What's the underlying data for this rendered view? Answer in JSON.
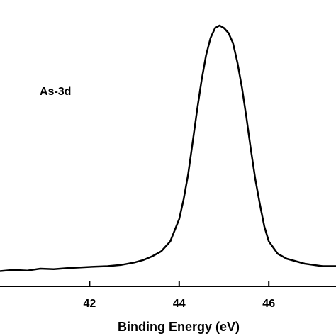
{
  "chart_data": {
    "type": "line",
    "title": "",
    "xlabel": "Binding Energy (eV)",
    "ylabel": "",
    "xlim": [
      40.0,
      47.5
    ],
    "ylim": [
      0,
      1.0
    ],
    "x_ticks": [
      42,
      44,
      46
    ],
    "x_tick_labels": [
      "42",
      "44",
      "46"
    ],
    "annotations": [
      {
        "text": "As-3d"
      }
    ],
    "series": [
      {
        "x": [
          40.0,
          40.3,
          40.6,
          40.9,
          41.2,
          41.5,
          41.8,
          42.1,
          42.4,
          42.7,
          43.0,
          43.2,
          43.4,
          43.6,
          43.8,
          44.0,
          44.1,
          44.2,
          44.3,
          44.4,
          44.5,
          44.6,
          44.7,
          44.8,
          44.9,
          45.0,
          45.1,
          45.2,
          45.3,
          45.4,
          45.5,
          45.6,
          45.7,
          45.8,
          45.9,
          46.0,
          46.2,
          46.4,
          46.6,
          46.8,
          47.0,
          47.2,
          47.5
        ],
        "y": [
          0.01,
          0.015,
          0.012,
          0.02,
          0.018,
          0.022,
          0.025,
          0.028,
          0.03,
          0.035,
          0.045,
          0.055,
          0.07,
          0.09,
          0.13,
          0.22,
          0.3,
          0.4,
          0.53,
          0.66,
          0.78,
          0.88,
          0.95,
          0.99,
          1.0,
          0.99,
          0.97,
          0.93,
          0.85,
          0.75,
          0.63,
          0.5,
          0.38,
          0.28,
          0.19,
          0.13,
          0.08,
          0.06,
          0.05,
          0.04,
          0.035,
          0.03,
          0.03
        ]
      }
    ]
  }
}
